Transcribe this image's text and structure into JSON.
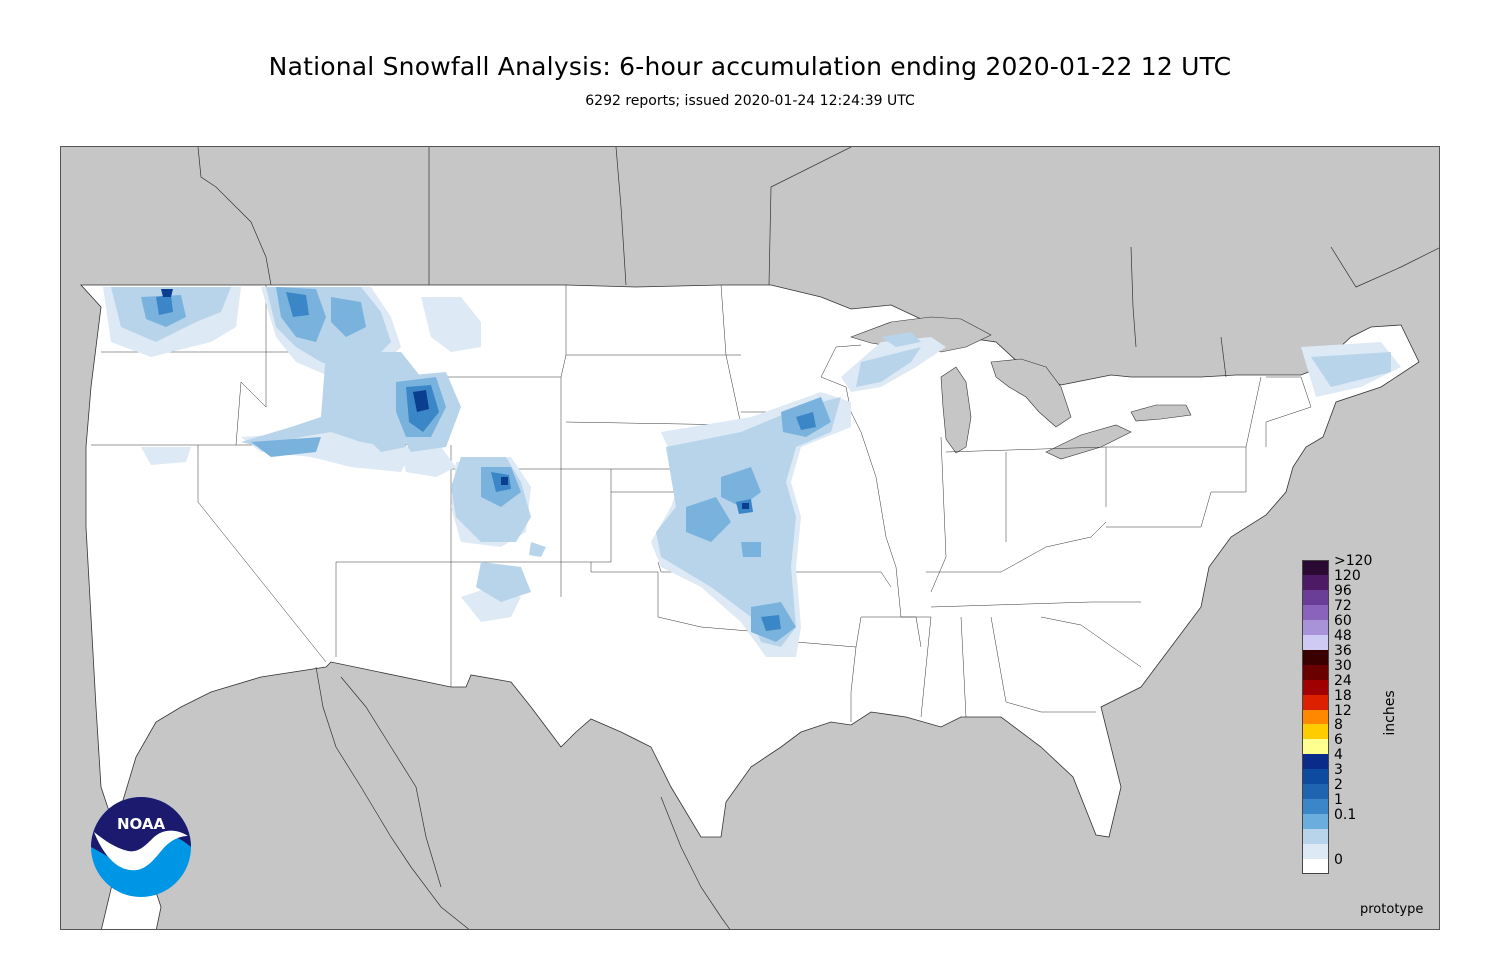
{
  "title": "National Snowfall Analysis: 6-hour accumulation ending 2020-01-22 12 UTC",
  "subtitle": "6292 reports; issued 2020-01-24 12:24:39 UTC",
  "map": {
    "background_color": "#c6c6c6",
    "land_color": "#ffffff",
    "snow_colors": {
      "light": "#dde9f4",
      "low": "#b8d4ea",
      "mid": "#79b3dd",
      "high": "#3a86c6",
      "heavy": "#0b3e8f"
    }
  },
  "legend": {
    "units": "inches",
    "items": [
      {
        "label": ">120",
        "color": "#2a0a33"
      },
      {
        "label": "120",
        "color": "#4d1a66"
      },
      {
        "label": "96",
        "color": "#6a3d97"
      },
      {
        "label": "72",
        "color": "#8a63bd"
      },
      {
        "label": "60",
        "color": "#a893d9"
      },
      {
        "label": "48",
        "color": "#cfcaf4"
      },
      {
        "label": "36",
        "color": "#3a0000"
      },
      {
        "label": "30",
        "color": "#6b0000"
      },
      {
        "label": "24",
        "color": "#a10000"
      },
      {
        "label": "18",
        "color": "#dd2000"
      },
      {
        "label": "12",
        "color": "#ff8800"
      },
      {
        "label": "8",
        "color": "#ffcc00"
      },
      {
        "label": "6",
        "color": "#ffff90"
      },
      {
        "label": "4",
        "color": "#0a2b8a"
      },
      {
        "label": "3",
        "color": "#0d4ba0"
      },
      {
        "label": "2",
        "color": "#1f64b0"
      },
      {
        "label": "1",
        "color": "#3a86c6"
      },
      {
        "label": "0.1",
        "color": "#6baedd"
      },
      {
        "label": "",
        "color": "#b8d4ea"
      },
      {
        "label": "",
        "color": "#dde9f4"
      },
      {
        "label": "0",
        "color": "#ffffff"
      }
    ]
  },
  "footer_note": "prototype",
  "logo": {
    "text": "NOAA",
    "colors": {
      "top": "#1b1a6e",
      "bottom": "#0096e6"
    }
  }
}
